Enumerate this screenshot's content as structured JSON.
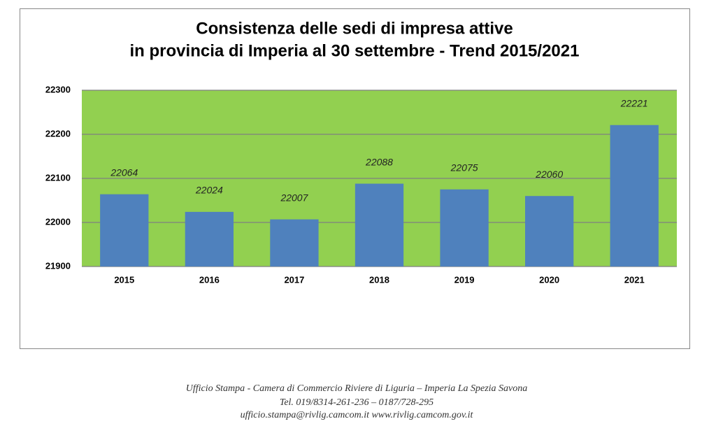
{
  "chart_data": {
    "type": "bar",
    "title": [
      "Consistenza delle sedi di impresa attive",
      "in provincia di Imperia al 30 settembre  - Trend 2015/2021"
    ],
    "categories": [
      "2015",
      "2016",
      "2017",
      "2018",
      "2019",
      "2020",
      "2021"
    ],
    "values": [
      22064,
      22024,
      22007,
      22088,
      22075,
      22060,
      22221
    ],
    "color": "#4f81bd",
    "plot_background": "#92d050",
    "ylim": [
      21900,
      22300
    ],
    "yticks": [
      21900,
      22000,
      22100,
      22200,
      22300
    ],
    "grid": true
  },
  "footer": [
    "Ufficio Stampa - Camera di Commercio Riviere di Liguria – Imperia La Spezia Savona",
    "Tel. 019/8314-261-236 – 0187/728-295",
    "ufficio.stampa@rivlig.camcom.it www.rivlig.camcom.gov.it"
  ]
}
